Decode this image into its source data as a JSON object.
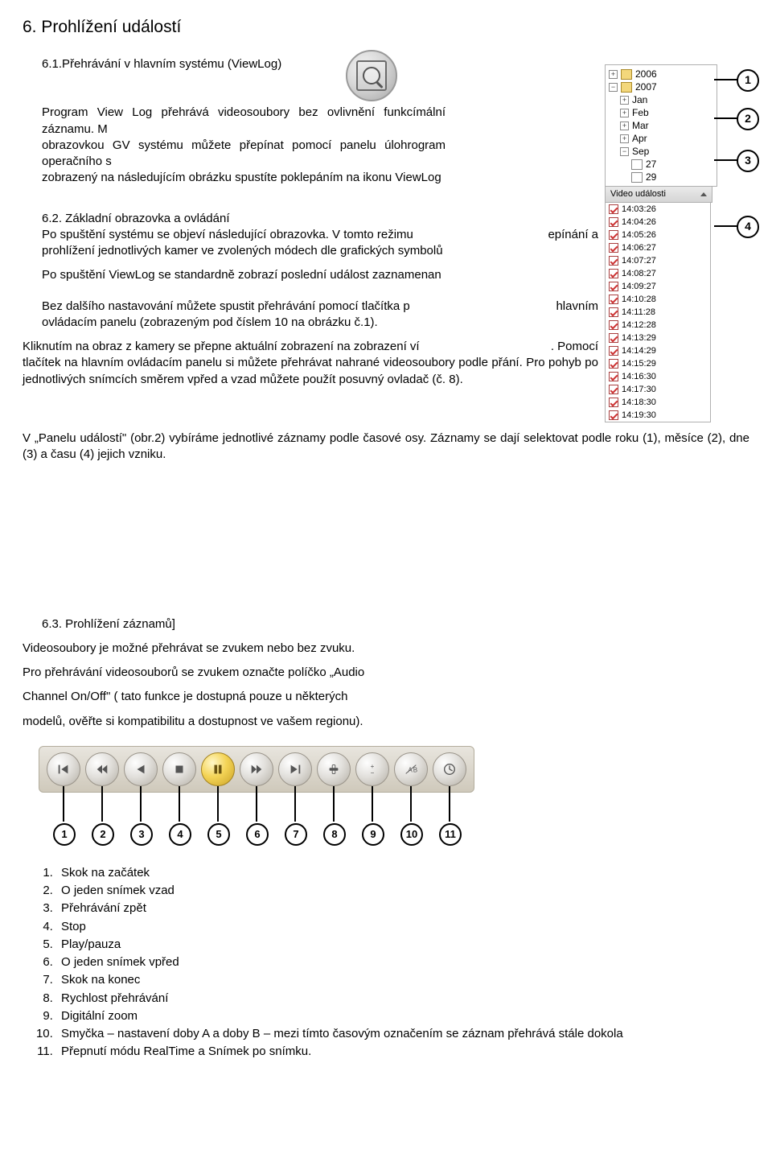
{
  "heading": "6. Prohlížení událostí",
  "sub1": "6.1.Přehrávání v hlavním systému (ViewLog)",
  "p1a": "Program View Log přehrává videosoubory bez ovlivnění funkcí záznamu. M",
  "p1a_r": "mální",
  "p1b": "obrazovkou GV systému můžete přepínat pomocí panelu úloh operačního s",
  "p1b_r": "rogram",
  "p1c": "zobrazený na následujícím obrázku spustíte poklepáním na ikonu ViewLog",
  "sub2": "6.2. Základní obrazovka a ovládání",
  "p2a_l": "Po  spuštění  systému  se  objeví  následující  obrazovka.  V tomto  režimu",
  "p2a_r": "epínání  a",
  "p2b": "prohlížení jednotlivých kamer ve zvolených módech dle grafických symbolů",
  "p3": "Po spuštění ViewLog  se standardně zobrazí poslední událost zaznamenan",
  "p4_l": "Bez  dalšího  nastavování  můžete  spustit  přehrávání  pomocí  tlačítka  p",
  "p4_r": "hlavním",
  "p4b": "ovládacím panelu (zobrazeným pod číslem 10 na obrázku č.1).",
  "p5_l": "Kliknutím na obraz z kamery se přepne aktuální zobrazení na zobrazení ví",
  "p5_r": ". Pomocí",
  "p5b": "tlačítek  na  hlavním  ovládacím  panelu  si  můžete  přehrávat    nahrané  videosoubory  podle  přání.  Pro pohyb po jednotlivých snímcích směrem vpřed a vzad můžete použít posuvný ovladač  (č. 8).",
  "p6": "V „Panelu událostí\" (obr.2) vybíráme jednotlivé záznamy podle časové osy. Záznamy se dají selektovat podle roku (1), měsíce (2), dne (3)  a času (4) jejich vzniku.",
  "sub3": "6.3. Prohlížení záznamů]",
  "p7": "Videosoubory je možné přehrávat se zvukem nebo bez zvuku.",
  "p8": "Pro přehrávání videosouborů se zvukem označte políčko „Audio",
  "p9": "Channel On/Off\" ( tato funkce je dostupná pouze u některých",
  "p10": "modelů, ověřte si kompatibilitu a dostupnost ve vašem regionu).",
  "tree": {
    "years": [
      "2006",
      "2007"
    ],
    "months": [
      "Jan",
      "Feb",
      "Mar",
      "Apr",
      "Sep"
    ],
    "days": [
      "27",
      "29"
    ]
  },
  "events_header": "Video události",
  "events": [
    "14:03:26",
    "14:04:26",
    "14:05:26",
    "14:06:27",
    "14:07:27",
    "14:08:27",
    "14:09:27",
    "14:10:28",
    "14:11:28",
    "14:12:28",
    "14:13:29",
    "14:14:29",
    "14:15:29",
    "14:16:30",
    "14:17:30",
    "14:18:30",
    "14:19:30"
  ],
  "callouts": [
    "1",
    "2",
    "3",
    "4"
  ],
  "controls": {
    "buttons": [
      {
        "name": "skip-start-icon",
        "label": "1"
      },
      {
        "name": "step-back-icon",
        "label": "2"
      },
      {
        "name": "play-back-icon",
        "label": "3"
      },
      {
        "name": "stop-icon",
        "label": "4"
      },
      {
        "name": "play-pause-icon",
        "label": "5",
        "active": true
      },
      {
        "name": "step-fwd-icon",
        "label": "6"
      },
      {
        "name": "skip-end-icon",
        "label": "7"
      },
      {
        "name": "speed-icon",
        "label": "8"
      },
      {
        "name": "zoom-icon",
        "label": "9"
      },
      {
        "name": "ab-loop-icon",
        "label": "10"
      },
      {
        "name": "realtime-icon",
        "label": "11"
      }
    ]
  },
  "button_list": [
    "Skok na začátek",
    "O jeden snímek vzad",
    "Přehrávání zpět",
    "Stop",
    "Play/pauza",
    "O jeden snímek vpřed",
    "Skok na konec",
    "Rychlost přehrávání",
    "Digitální zoom",
    "Smyčka – nastavení doby A a doby B – mezi tímto časovým označením se záznam přehrává stále dokola",
    "Přepnutí módu RealTime a Snímek po snímku."
  ]
}
